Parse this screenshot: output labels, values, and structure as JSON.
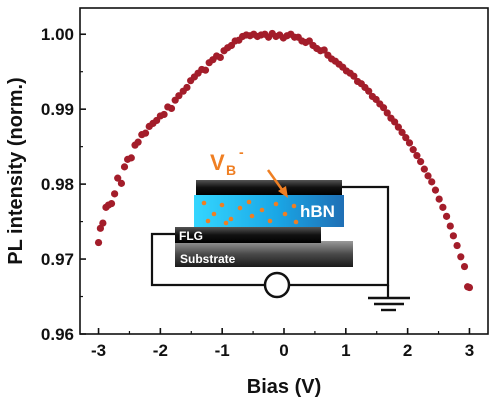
{
  "chart_data": {
    "type": "scatter",
    "xlabel": "Bias (V)",
    "ylabel": "PL intensity (norm.)",
    "xlim": [
      -3.3,
      3.3
    ],
    "ylim": [
      0.96,
      1.0035
    ],
    "xticks": [
      "-3",
      "-2",
      "-1",
      "0",
      "1",
      "2",
      "3"
    ],
    "yticks": [
      "0.96",
      "0.97",
      "0.98",
      "0.99",
      "1.00"
    ],
    "grid": false,
    "marker_color": "#a31d2a",
    "series": [
      {
        "x": [
          -3.0,
          -2.97,
          -2.93,
          -2.88,
          -2.84,
          -2.79,
          -2.74,
          -2.69,
          -2.63,
          -2.58,
          -2.53,
          -2.47,
          -2.41,
          -2.36,
          -2.3,
          -2.24,
          -2.18,
          -2.12,
          -2.06,
          -2.0,
          -1.94,
          -1.88,
          -1.82,
          -1.76,
          -1.7,
          -1.63,
          -1.57,
          -1.51,
          -1.45,
          -1.39,
          -1.33,
          -1.27,
          -1.21,
          -1.15,
          -1.09,
          -1.03,
          -0.97,
          -0.91,
          -0.85,
          -0.79,
          -0.73,
          -0.67,
          -0.61,
          -0.55,
          -0.49,
          -0.43,
          -0.37,
          -0.31,
          -0.25,
          -0.19,
          -0.13,
          -0.07,
          -0.01,
          0.05,
          0.11,
          0.17,
          0.23,
          0.29,
          0.35,
          0.41,
          0.47,
          0.53,
          0.59,
          0.65,
          0.71,
          0.77,
          0.83,
          0.89,
          0.95,
          1.01,
          1.07,
          1.13,
          1.19,
          1.25,
          1.31,
          1.37,
          1.43,
          1.49,
          1.55,
          1.61,
          1.67,
          1.73,
          1.79,
          1.85,
          1.91,
          1.97,
          2.03,
          2.09,
          2.15,
          2.21,
          2.27,
          2.33,
          2.39,
          2.45,
          2.51,
          2.57,
          2.63,
          2.69,
          2.74,
          2.8,
          2.86,
          2.92,
          2.97,
          3.0
        ],
        "y": [
          0.9722,
          0.9741,
          0.9748,
          0.9769,
          0.9772,
          0.9774,
          0.9787,
          0.9808,
          0.9801,
          0.9823,
          0.9833,
          0.9835,
          0.9852,
          0.9856,
          0.9866,
          0.9868,
          0.9877,
          0.9881,
          0.9885,
          0.9891,
          0.9893,
          0.9903,
          0.9901,
          0.9912,
          0.9918,
          0.9924,
          0.9929,
          0.9938,
          0.9943,
          0.9948,
          0.9953,
          0.9952,
          0.9962,
          0.9966,
          0.9971,
          0.9969,
          0.9978,
          0.9982,
          0.9985,
          0.9991,
          0.9992,
          0.9997,
          0.9999,
          0.9998,
          1.0,
          0.9997,
          0.9999,
          1.0,
          0.9996,
          1.0001,
          0.9997,
          0.9999,
          0.9995,
          0.9998,
          1.0,
          0.9996,
          0.9996,
          0.9991,
          0.9989,
          0.9991,
          0.9985,
          0.9981,
          0.9978,
          0.9979,
          0.9972,
          0.9967,
          0.9964,
          0.996,
          0.9956,
          0.9951,
          0.9948,
          0.9944,
          0.9937,
          0.9934,
          0.9929,
          0.9924,
          0.9917,
          0.9913,
          0.9907,
          0.9902,
          0.9895,
          0.9888,
          0.9883,
          0.9876,
          0.9869,
          0.9862,
          0.9855,
          0.9846,
          0.9838,
          0.983,
          0.982,
          0.9811,
          0.9803,
          0.9792,
          0.978,
          0.9769,
          0.9757,
          0.9744,
          0.9731,
          0.9718,
          0.9703,
          0.969,
          0.9663,
          0.9662
        ]
      }
    ]
  },
  "inset": {
    "hbn": "hBN",
    "flg": "FLG",
    "substrate": "Substrate",
    "vb_main": "V",
    "vb_sub": "B",
    "vb_sup": "-",
    "accent_color": "#ef7f23"
  }
}
